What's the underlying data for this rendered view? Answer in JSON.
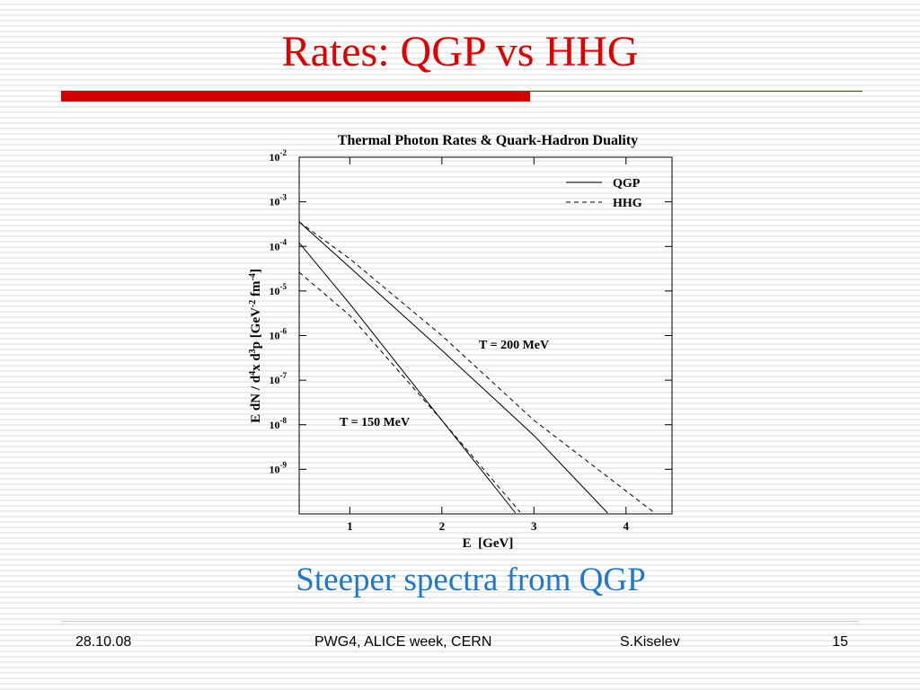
{
  "slide": {
    "title": "Rates: QGP vs HHG",
    "subtitle": "Steeper spectra from QGP",
    "footer": {
      "date": "28.10.08",
      "event": "PWG4, ALICE week, CERN",
      "author": "S.Kiselev",
      "page": "15"
    },
    "colors": {
      "title": "#e00000",
      "accent_bar": "#d40000",
      "subtitle": "#1f78c8"
    }
  },
  "chart_data": {
    "type": "line",
    "title": "Thermal Photon Rates & Quark-Hadron Duality",
    "xlabel": "E  [GeV]",
    "ylabel": "E dN / d4x d3p  [GeV-2 fm-4]",
    "xlim": [
      0.45,
      4.5
    ],
    "ylim_exp": [
      -10,
      -2
    ],
    "y_scale": "log",
    "x_ticks": [
      1,
      2,
      3,
      4
    ],
    "y_tick_labels": [
      {
        "base": "10",
        "exp": "-2",
        "value": -2
      },
      {
        "base": "10",
        "exp": "-3",
        "value": -3
      },
      {
        "base": "10",
        "exp": "-4",
        "value": -4
      },
      {
        "base": "10",
        "exp": "-5",
        "value": -5
      },
      {
        "base": "10",
        "exp": "-6",
        "value": -6
      },
      {
        "base": "10",
        "exp": "-7",
        "value": -7
      },
      {
        "base": "10",
        "exp": "-8",
        "value": -8
      },
      {
        "base": "10",
        "exp": "-9",
        "value": -9
      }
    ],
    "legend": {
      "position": "top-right",
      "entries": [
        {
          "name": "QGP",
          "style": "solid"
        },
        {
          "name": "HHG",
          "style": "dashed"
        }
      ]
    },
    "annotations": [
      {
        "text": "T = 200 MeV",
        "x": 3.0,
        "y_exp": -6.2
      },
      {
        "text": "T = 150 MeV",
        "x": 1.2,
        "y_exp": -7.9
      }
    ],
    "series": [
      {
        "name": "QGP",
        "temperature": "T = 200 MeV",
        "style": "solid",
        "points": [
          [
            0.45,
            -3.45
          ],
          [
            1.0,
            -4.47
          ],
          [
            2.0,
            -6.33
          ],
          [
            3.0,
            -8.24
          ],
          [
            3.8,
            -9.98
          ]
        ]
      },
      {
        "name": "HHG",
        "temperature": "T = 200 MeV",
        "style": "dashed",
        "points": [
          [
            0.45,
            -3.45
          ],
          [
            1.0,
            -4.28
          ],
          [
            2.0,
            -6.0
          ],
          [
            3.0,
            -7.9
          ],
          [
            4.3,
            -9.96
          ]
        ]
      },
      {
        "name": "QGP",
        "temperature": "T = 150 MeV",
        "style": "solid",
        "points": [
          [
            0.45,
            -3.92
          ],
          [
            1.0,
            -5.29
          ],
          [
            2.0,
            -7.9
          ],
          [
            2.8,
            -9.98
          ]
        ]
      },
      {
        "name": "HHG",
        "temperature": "T = 150 MeV",
        "style": "dashed",
        "points": [
          [
            0.45,
            -4.58
          ],
          [
            1.0,
            -5.55
          ],
          [
            2.0,
            -7.9
          ],
          [
            2.85,
            -9.96
          ]
        ]
      }
    ]
  }
}
